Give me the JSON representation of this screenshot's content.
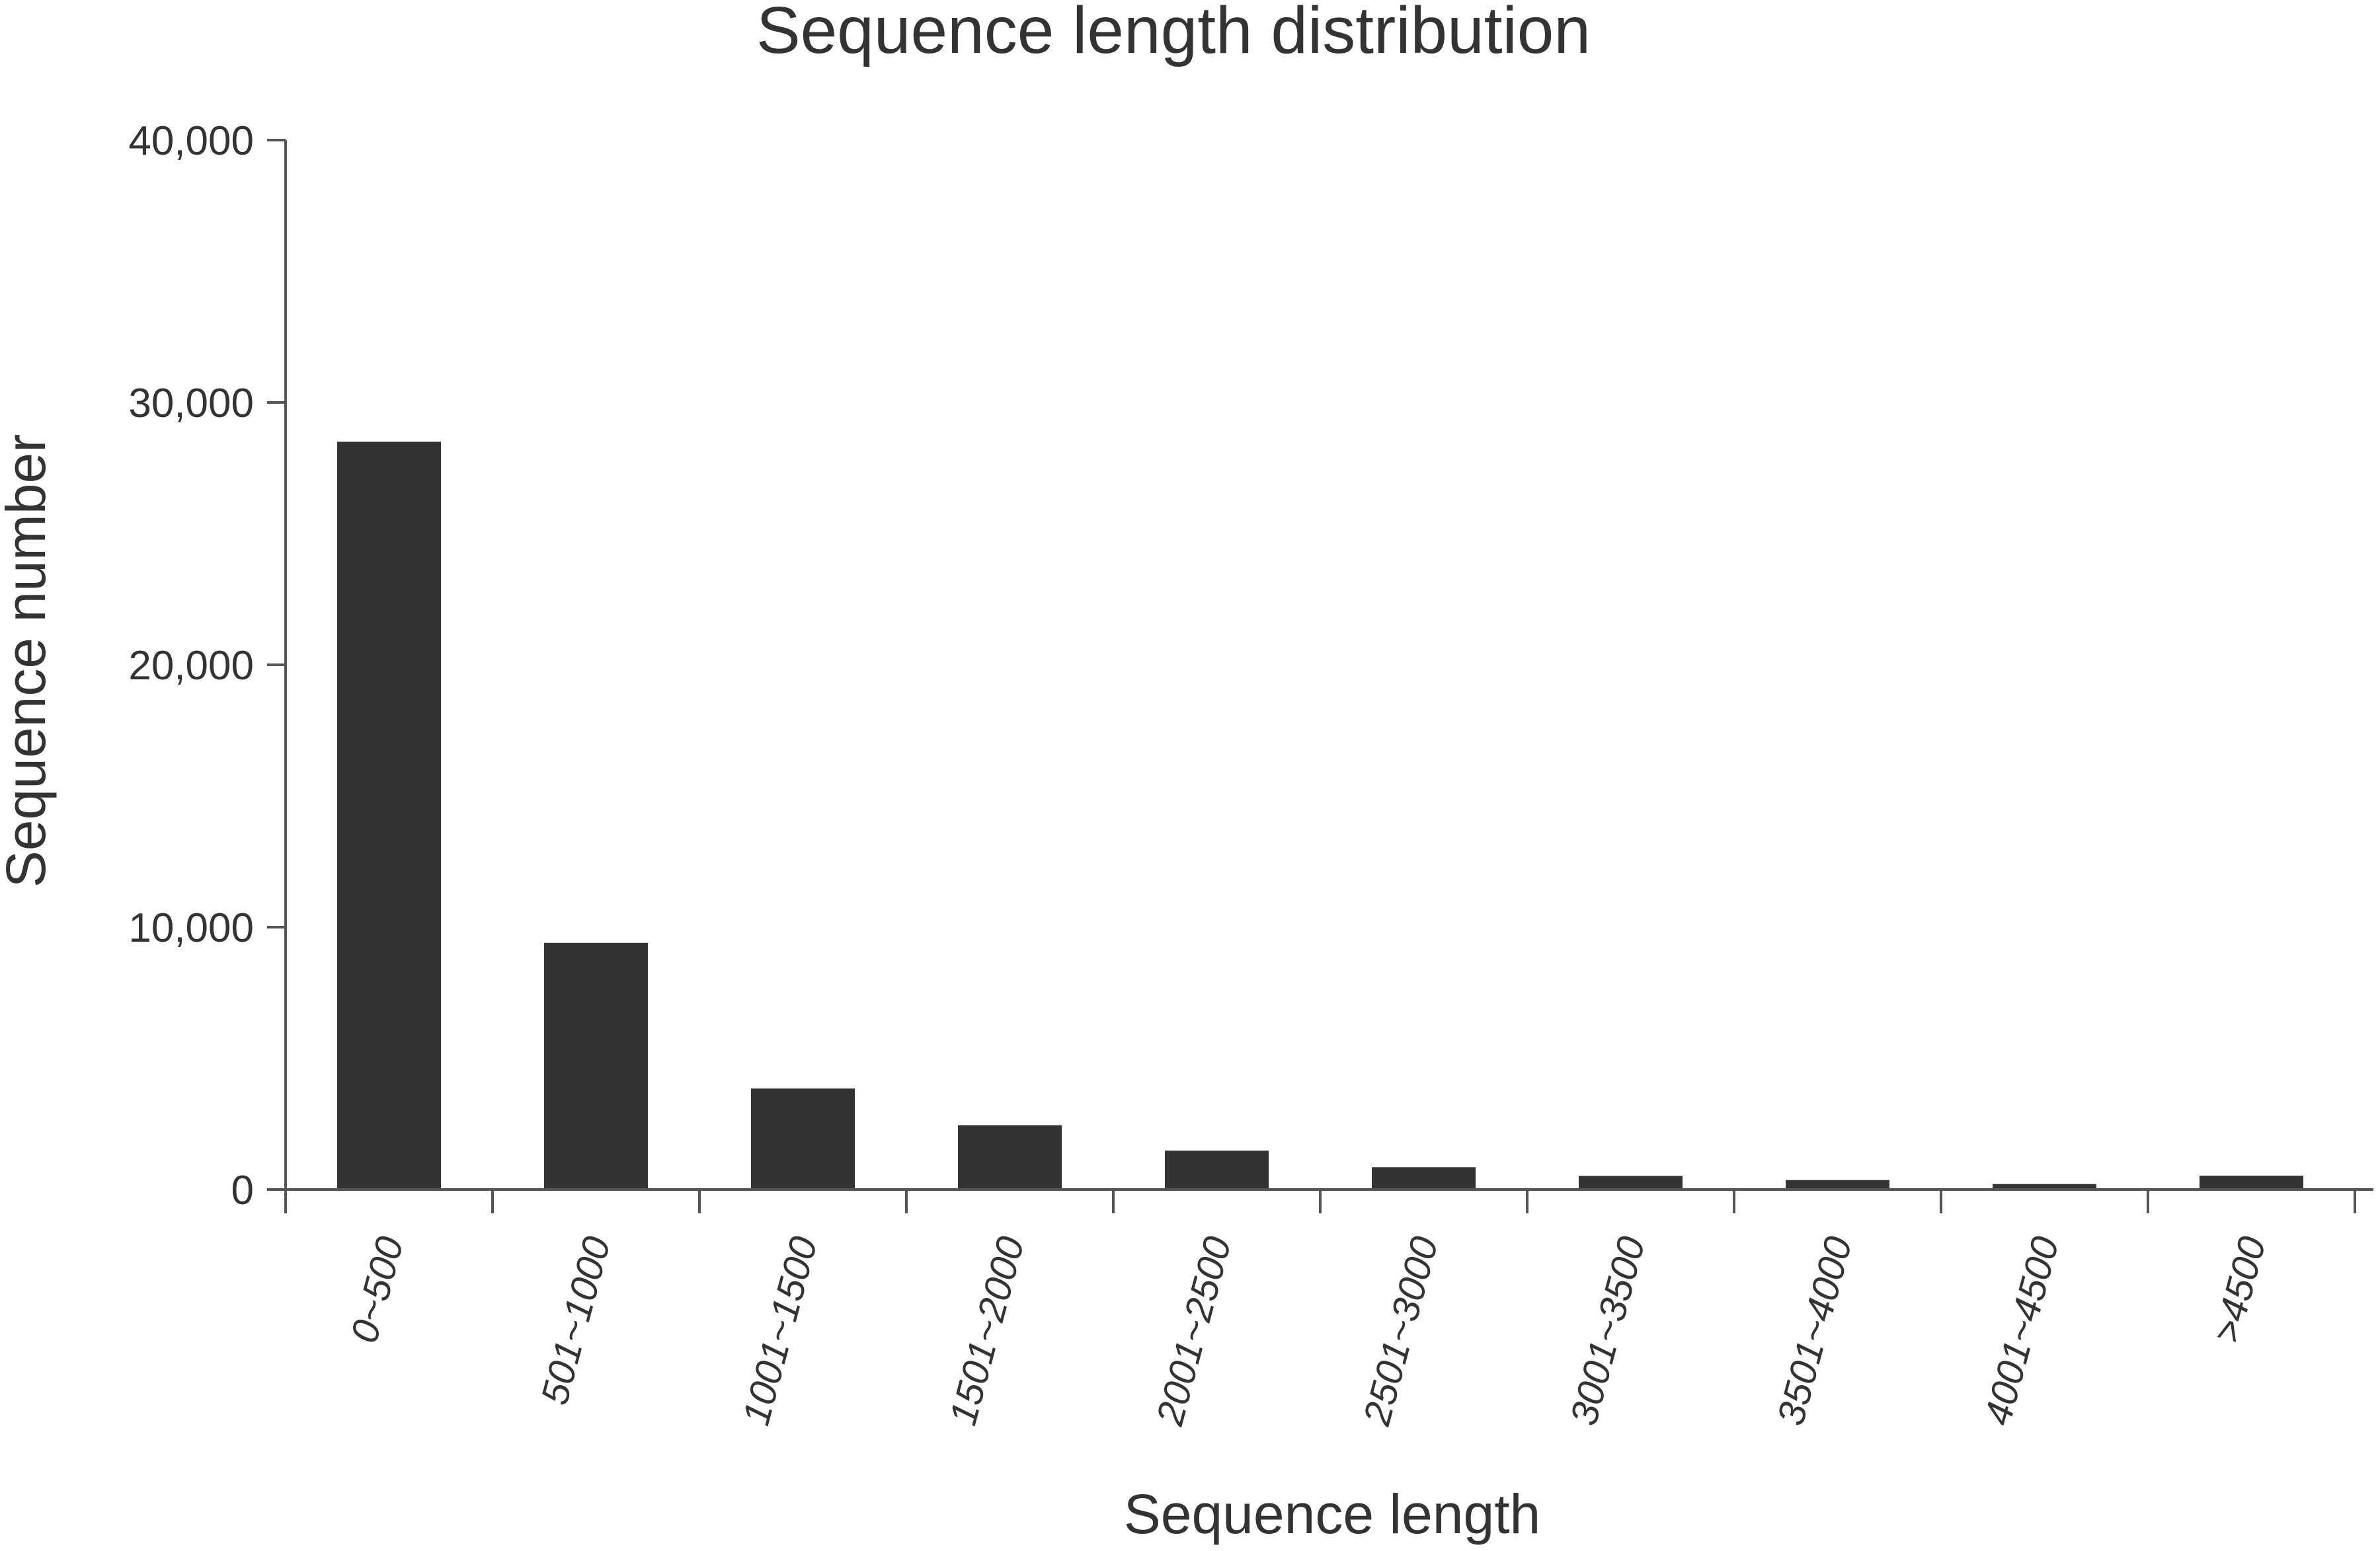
{
  "chart_data": {
    "type": "bar",
    "title": "Sequence length distribution",
    "xlabel": "Sequence length",
    "ylabel": "Sequence number",
    "categories": [
      "0~500",
      "501~1000",
      "1001~1500",
      "1501~2000",
      "2001~2500",
      "2501~3000",
      "3001~3500",
      "3501~4000",
      "4001~4500",
      ">4500"
    ],
    "values": [
      28500,
      9400,
      3850,
      2450,
      1480,
      850,
      520,
      360,
      210,
      530
    ],
    "ylim": [
      0,
      40000
    ],
    "yticks": [
      0,
      10000,
      20000,
      30000,
      40000
    ],
    "ytick_labels": [
      "0",
      "10,000",
      "20,000",
      "30,000",
      "40,000"
    ],
    "grid": false,
    "legend": "none",
    "bar_color": "#333333",
    "axis_color": "#555555"
  }
}
